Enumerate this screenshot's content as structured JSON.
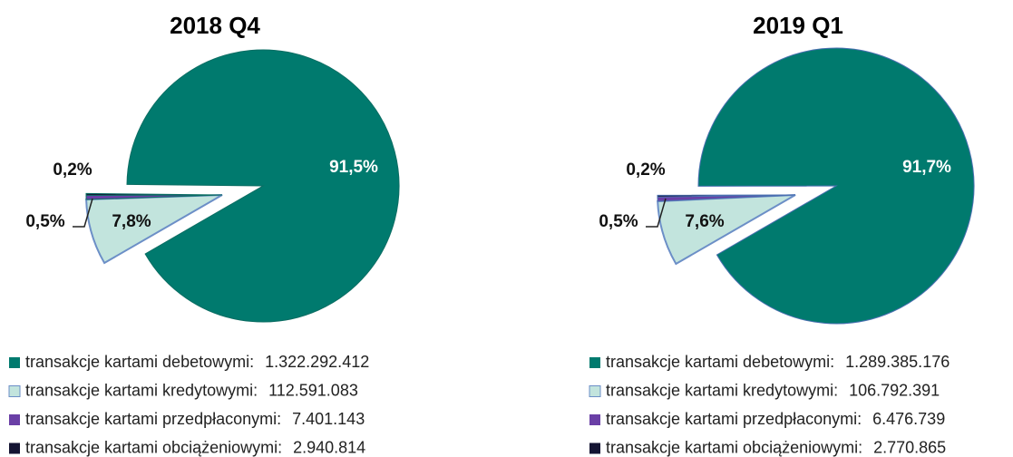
{
  "chart_data": [
    {
      "type": "pie",
      "title": "2018 Q4",
      "categories": [
        "transakcje kartami debetowymi:",
        "transakcje kartami kredytowymi:",
        "transakcje kartami przedpłaconymi:",
        "transakcje kartami obciążeniowymi:"
      ],
      "values": [
        91.5,
        7.8,
        0.5,
        0.2
      ],
      "value_labels": [
        "91,5%",
        "7,8%",
        "0,5%",
        "0,2%"
      ],
      "legend_counts": [
        {
          "value": 1322292412,
          "label": "1.322.292.412"
        },
        {
          "value": 112591083,
          "label": "112.591.083"
        },
        {
          "value": 7401143,
          "label": "7.401.143"
        },
        {
          "value": 2940814,
          "label": "2.940.814"
        }
      ],
      "colors": [
        "#007a6e",
        "#c2e4dd",
        "#6a3fa6",
        "#141433"
      ]
    },
    {
      "type": "pie",
      "title": "2019 Q1",
      "categories": [
        "transakcje kartami debetowymi:",
        "transakcje kartami kredytowymi:",
        "transakcje kartami przedpłaconymi:",
        "transakcje kartami obciążeniowymi:"
      ],
      "values": [
        91.7,
        7.6,
        0.5,
        0.2
      ],
      "value_labels": [
        "91,7%",
        "7,6%",
        "0,5%",
        "0,2%"
      ],
      "legend_counts": [
        {
          "value": 1289385176,
          "label": "1.289.385.176"
        },
        {
          "value": 106792391,
          "label": "106.792.391"
        },
        {
          "value": 6476739,
          "label": "6.476.739"
        },
        {
          "value": 2770865,
          "label": "2.770.865"
        }
      ],
      "colors": [
        "#007a6e",
        "#c2e4dd",
        "#6a3fa6",
        "#141433"
      ]
    }
  ]
}
